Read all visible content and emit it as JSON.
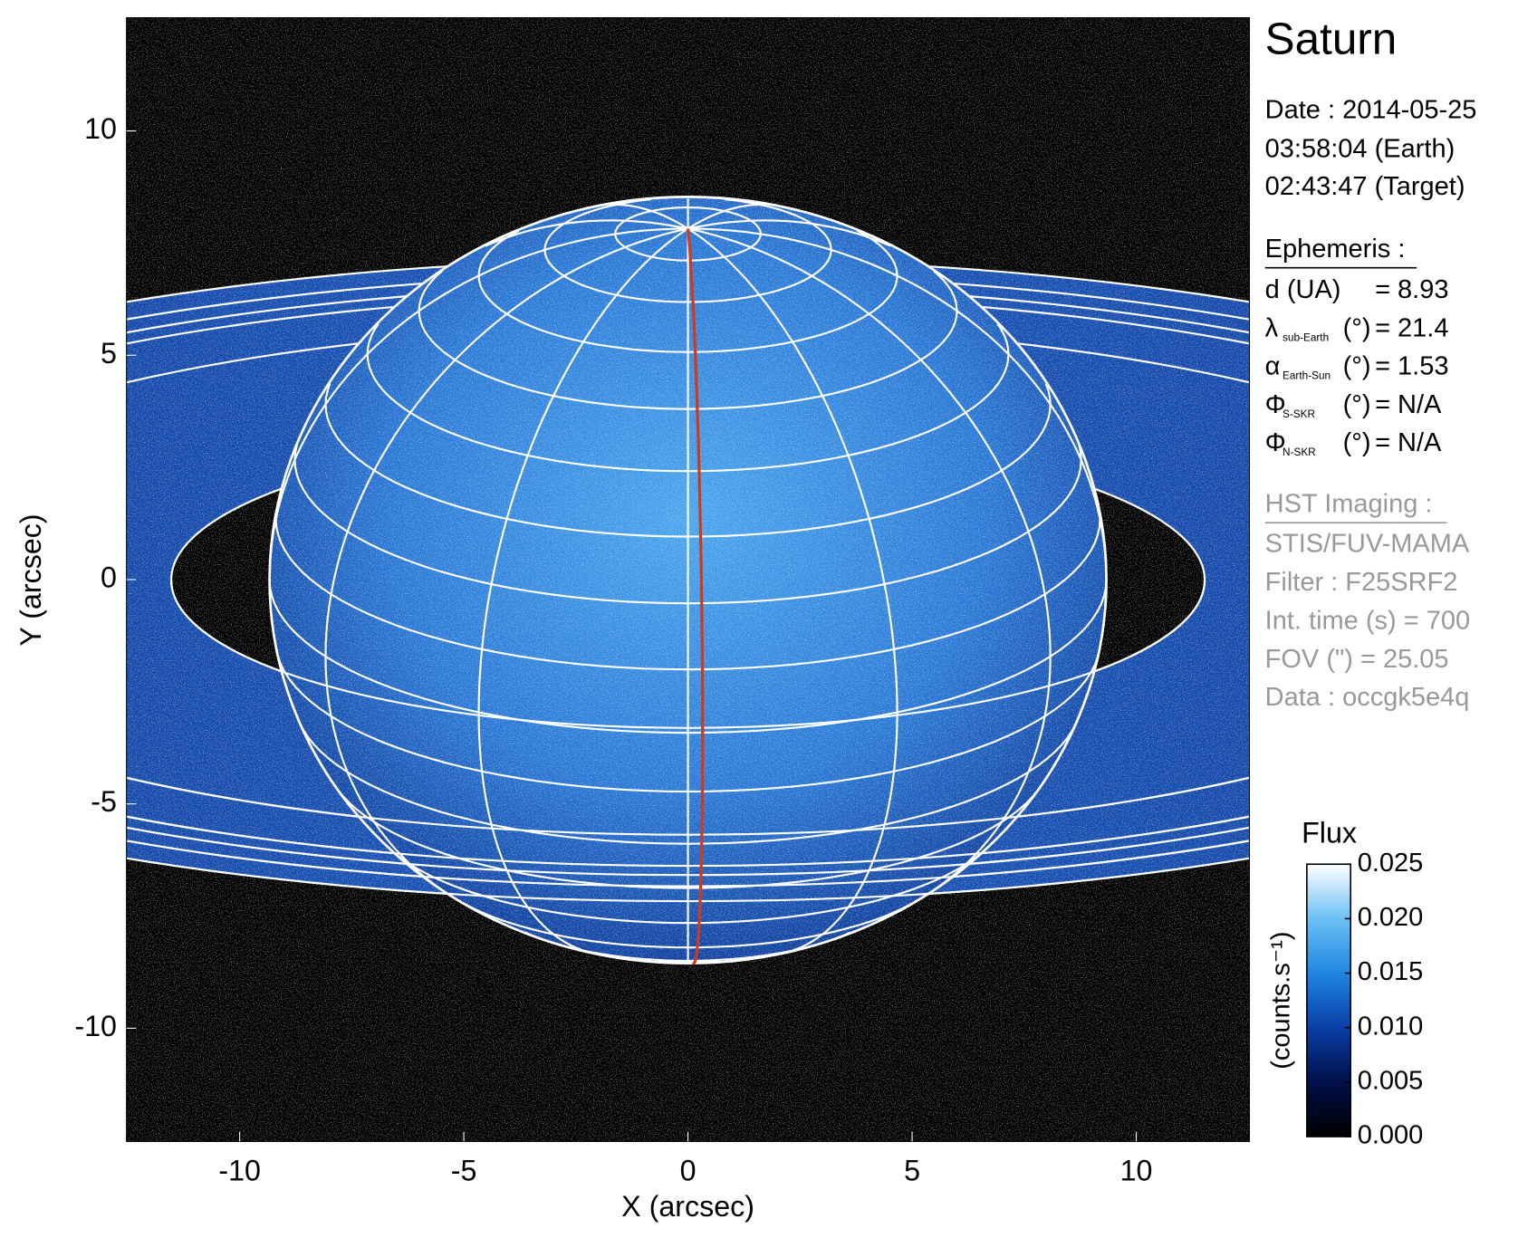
{
  "chart_data": {
    "type": "image",
    "title": "Saturn",
    "xlabel": "X (arcsec)",
    "ylabel": "Y (arcsec)",
    "xlim": [
      -12.525,
      12.525
    ],
    "ylim": [
      -12.525,
      12.525
    ],
    "xticks": [
      -10,
      -5,
      0,
      5,
      10
    ],
    "yticks": [
      -10,
      -5,
      0,
      5,
      10
    ],
    "colorbar": {
      "title": "Flux",
      "label": "(counts.s⁻¹)",
      "clim": [
        0,
        0.025
      ],
      "ticks": [
        {
          "value": 0,
          "label": "0.000"
        },
        {
          "value": 0.005,
          "label": "0.005"
        },
        {
          "value": 0.01,
          "label": "0.010"
        },
        {
          "value": 0.015,
          "label": "0.015"
        },
        {
          "value": 0.02,
          "label": "0.020"
        },
        {
          "value": 0.025,
          "label": "0.025"
        }
      ],
      "colormap": [
        "#000000",
        "#00104a",
        "#0a3fa8",
        "#1f86e0",
        "#6cc0f5",
        "#ffffff"
      ]
    },
    "info": {
      "date": "Date : 2014-05-25",
      "earth_time": "03:58:04 (Earth)",
      "target_time": "02:43:47 (Target)",
      "ephemeris_title": "Ephemeris :",
      "ephemeris": [
        {
          "label": "d (UA)",
          "value": "= 8.93"
        },
        {
          "symbol": "λ",
          "subscript": "sub-Earth",
          "label": "(°)",
          "value": "= 21.4"
        },
        {
          "symbol": "α",
          "subscript": "Earth-Sun",
          "label": "(°)",
          "value": "= 1.53"
        },
        {
          "symbol": "Φ",
          "subscript": "S-SKR",
          "label": "(°)",
          "value": "= N/A"
        },
        {
          "symbol": "Φ",
          "subscript": "N-SKR",
          "label": "(°)",
          "value": "= N/A"
        }
      ],
      "imaging_title": "HST Imaging :",
      "imaging": [
        "STIS/FUV-MAMA",
        "Filter : F25SRF2",
        "Int. time (s) = 700",
        "FOV (\") = 25.05",
        "Data : occgk5e4q"
      ]
    }
  }
}
